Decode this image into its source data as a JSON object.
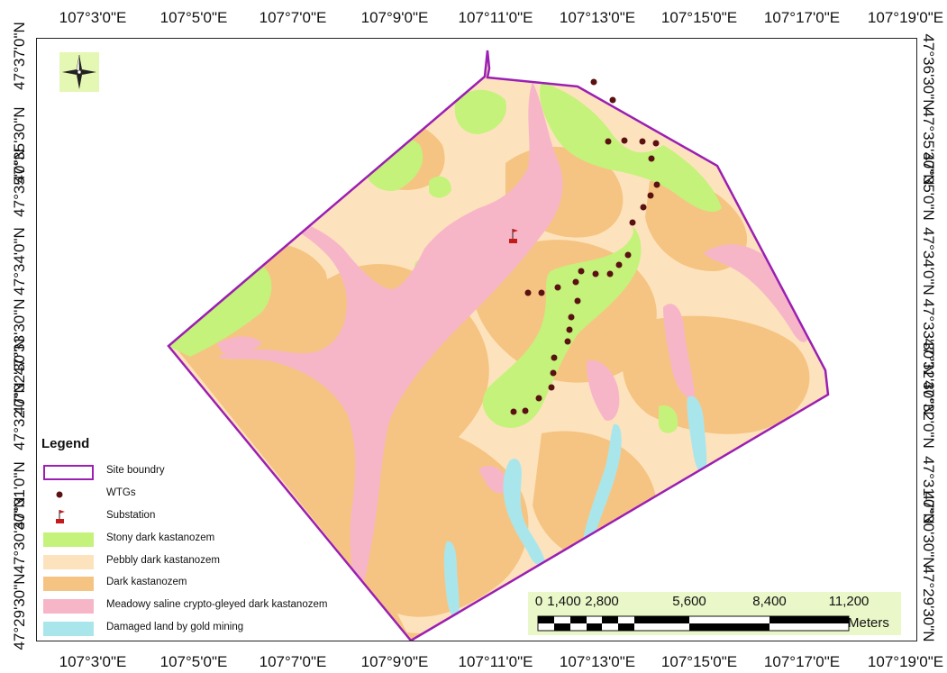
{
  "map": {
    "top_ticks": [
      "107°3'0\"E",
      "107°5'0\"E",
      "107°7'0\"E",
      "107°9'0\"E",
      "107°11'0\"E",
      "107°13'0\"E",
      "107°15'0\"E",
      "107°17'0\"E",
      "107°19'0\"E"
    ],
    "bottom_ticks": [
      "107°3'0\"E",
      "107°5'0\"E",
      "107°7'0\"E",
      "107°9'0\"E",
      "107°11'0\"E",
      "107°13'0\"E",
      "107°15'0\"E",
      "107°17'0\"E",
      "107°19'0\"E"
    ],
    "left_ticks": [
      "47°37'0\"N",
      "47°35'30\"N",
      "47°35'0\"N",
      "47°34'0\"N",
      "47°33'30\"N",
      "47°32'30\"N",
      "47°32'0\"N",
      "47°31'0\"N",
      "47°30'30\"N",
      "47°29'30\"N"
    ],
    "right_ticks": [
      "47°36'30\"N",
      "47°35'30\"N",
      "47°35'0\"N",
      "47°34'0\"N",
      "47°33'30\"N",
      "47°32'30\"N",
      "47°32'0\"N",
      "47°31'0\"N",
      "47°30'30\"N",
      "47°29'30\"N"
    ],
    "colors": {
      "site_boundary": "#9b1fb3",
      "wtg": "#5a1111",
      "substation": "#c61a1a",
      "stony": "#c4f27a",
      "pebbly": "#fde3bd",
      "dark": "#f6c482",
      "meadowy": "#f7b6c8",
      "damaged": "#a9e6ec"
    }
  },
  "legend": {
    "title": "Legend",
    "items": [
      {
        "label": "Site boundry",
        "icon": "outline-rectangle"
      },
      {
        "label": "WTGs",
        "icon": "dot"
      },
      {
        "label": "Substation",
        "icon": "flag"
      },
      {
        "label": "Stony dark kastanozem",
        "icon": "fill-swatch"
      },
      {
        "label": "Pebbly dark kastanozem",
        "icon": "fill-swatch"
      },
      {
        "label": "Dark kastanozem",
        "icon": "fill-swatch"
      },
      {
        "label": "Meadowy saline crypto-gleyed dark kastanozem",
        "icon": "fill-swatch"
      },
      {
        "label": "Damaged land by gold mining",
        "icon": "fill-swatch"
      }
    ]
  },
  "scalebar": {
    "labels": [
      "0",
      "1,400",
      "2,800",
      "5,600",
      "8,400",
      "11,200"
    ],
    "unit": "Meters"
  },
  "north_arrow": {
    "icon": "compass-rose-icon"
  }
}
